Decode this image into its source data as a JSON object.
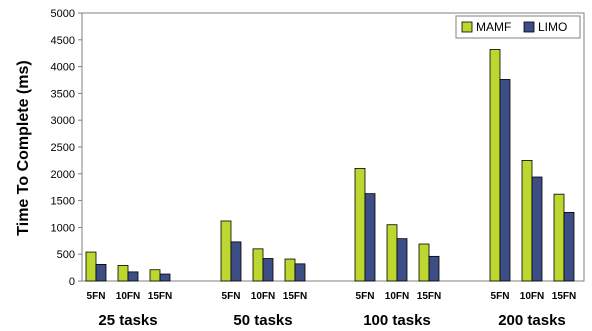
{
  "chart_data": {
    "type": "bar",
    "title": "",
    "xlabel": "",
    "ylabel": "Time To Complete (ms)",
    "ylim": [
      0,
      5000
    ],
    "yticks": [
      0,
      500,
      1000,
      1500,
      2000,
      2500,
      3000,
      3500,
      4000,
      4500,
      5000
    ],
    "grid": false,
    "legend_position": "top-right",
    "groups": [
      {
        "label": "25 tasks",
        "categories": [
          "5FN",
          "10FN",
          "15FN"
        ]
      },
      {
        "label": "50 tasks",
        "categories": [
          "5FN",
          "10FN",
          "15FN"
        ]
      },
      {
        "label": "100 tasks",
        "categories": [
          "5FN",
          "10FN",
          "15FN"
        ]
      },
      {
        "label": "200 tasks",
        "categories": [
          "5FN",
          "10FN",
          "15FN"
        ]
      }
    ],
    "series": [
      {
        "name": "MAMF",
        "color": "#bdd630",
        "values": [
          540,
          290,
          210,
          1120,
          600,
          410,
          2100,
          1050,
          690,
          4320,
          2250,
          1620
        ]
      },
      {
        "name": "LIMO",
        "color": "#3d4e86",
        "values": [
          310,
          170,
          130,
          730,
          420,
          320,
          1630,
          790,
          460,
          3760,
          1940,
          1280
        ]
      }
    ]
  }
}
